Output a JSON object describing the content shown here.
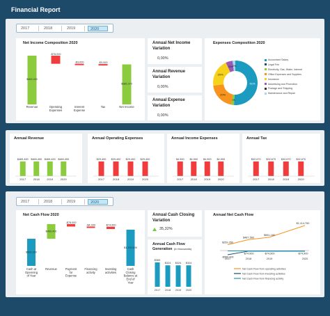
{
  "header": {
    "title": "Financial Report"
  },
  "years": [
    "2017",
    "2018",
    "2019",
    "2020"
  ],
  "selected_year": "2020",
  "colors": {
    "green": "#8ccb3e",
    "red": "#f03c3c",
    "teal": "#1a9bbf",
    "navy": "#1d4a68"
  },
  "net_income": {
    "title": "Net Income Composition 2020",
    "chart_data": {
      "type": "bar",
      "categories": [
        "Revenue",
        "Operating Expenses",
        "Interest Expense",
        "Tax",
        "Net Income"
      ],
      "values": [
        469400,
        -78000,
        -3000,
        -3000,
        385370
      ],
      "labels": [
        "$469,400",
        "-$78,000",
        "-$3,000",
        "-$3,000",
        "$385,370"
      ]
    }
  },
  "kpis_top": [
    {
      "title": "Annual Net Income Variation",
      "value": "0,00%"
    },
    {
      "title": "Annual Revenue Variation",
      "value": "0,00%"
    },
    {
      "title": "Annual Expense Variation",
      "value": "0,00%"
    }
  ],
  "expenses": {
    "title": "Expenses Composition 2020",
    "chart_data": {
      "type": "pie",
      "labels": [
        "Accountant Salary",
        "Legal Fee",
        "Electricity, Gas, Water, Internet",
        "Office Expenses and Supplies",
        "Insurance",
        "Advertising and Promotion",
        "Postage and Shipping",
        "Maintenance and Repair"
      ],
      "values": [
        51,
        0,
        2,
        20,
        20,
        5,
        0,
        2
      ],
      "slice_labels": [
        "51%",
        "",
        "2%",
        "20%",
        "20%",
        "5%",
        "",
        "2%"
      ],
      "colors": [
        "#1a9bbf",
        "#1d4a68",
        "#8ccb3e",
        "#f7941d",
        "#f7d21d",
        "#9b59b6",
        "#333333",
        "#a6d6ec"
      ]
    }
  },
  "annuals": [
    {
      "title": "Annual Revenue",
      "color": "#8ccb3e",
      "labels": [
        "$469,400",
        "$469,400",
        "$469,400",
        "$469,400"
      ],
      "values": [
        469400,
        469400,
        469400,
        469400
      ]
    },
    {
      "title": "Annual Operating Expenses",
      "color": "#f03c3c",
      "labels": [
        "$29,400",
        "$29,400",
        "$29,400",
        "$29,400"
      ],
      "values": [
        29400,
        29400,
        29400,
        29400
      ]
    },
    {
      "title": "Annual Income Expenses",
      "color": "#f03c3c",
      "labels": [
        "$4,900",
        "$4,900",
        "$4,900",
        "$4,900"
      ],
      "values": [
        4900,
        4900,
        4900,
        4900
      ]
    },
    {
      "title": "Annual Tax",
      "color": "#f03c3c",
      "labels": [
        "$32,670",
        "$32,670",
        "$32,670",
        "$32,670"
      ],
      "values": [
        32670,
        32670,
        32670,
        32670
      ]
    }
  ],
  "net_cash_flow": {
    "title": "Net Cash Flow 2020",
    "chart_data": {
      "type": "bar",
      "categories": [
        "Cash at Openning of Year",
        "Revenue",
        "Payment for Expense",
        "Financing activity",
        "Investing activities",
        "Cash Closing Balance at End of Year"
      ],
      "values": [
        869300,
        469400,
        -78000,
        -4000,
        -74900,
        1159800
      ],
      "labels": [
        "$869,300",
        "$469,400",
        "-$78,000",
        "-$4,000",
        "-$74,900",
        "$1,159,800"
      ]
    }
  },
  "cash_closing": {
    "title": "Annual Cash Closing Variation",
    "value": "35,32%"
  },
  "cash_generation": {
    "title": "Annual Cash Flow Generation",
    "unit": "(in thousands)",
    "chart_data": {
      "type": "bar",
      "categories": [
        "2017",
        "2018",
        "2019",
        "2020"
      ],
      "values": [
        369,
        324,
        324,
        324
      ],
      "labels": [
        "$369",
        "$324",
        "$324",
        "$324"
      ]
    }
  },
  "annual_ncf": {
    "title": "Annual Net Cash Flow",
    "chart_data": {
      "type": "line",
      "categories": [
        "2017",
        "2018",
        "2019",
        "2020"
      ],
      "series": [
        {
          "name": "Net Cash Flow from operating activities",
          "values": [
            259350,
            487560,
            591180,
            1114750
          ],
          "labels": [
            "$259,350",
            "$487,560",
            "$591,180",
            "$1,114,750"
          ],
          "color": "#f7941d"
        },
        {
          "name": "Net Cash Flow from investing activities",
          "values": [
            -550000,
            -74900,
            -74900,
            -74900
          ],
          "labels": [
            "-$550,000",
            "-$74,900",
            "-$74,900",
            "-$74,900"
          ],
          "color": "#1d4a68"
        },
        {
          "name": "Net Cash Flow from financing activity",
          "values": [
            0,
            0,
            0,
            0
          ],
          "labels": [
            "",
            "",
            "",
            ""
          ],
          "color": "#1a9bbf"
        }
      ]
    }
  }
}
